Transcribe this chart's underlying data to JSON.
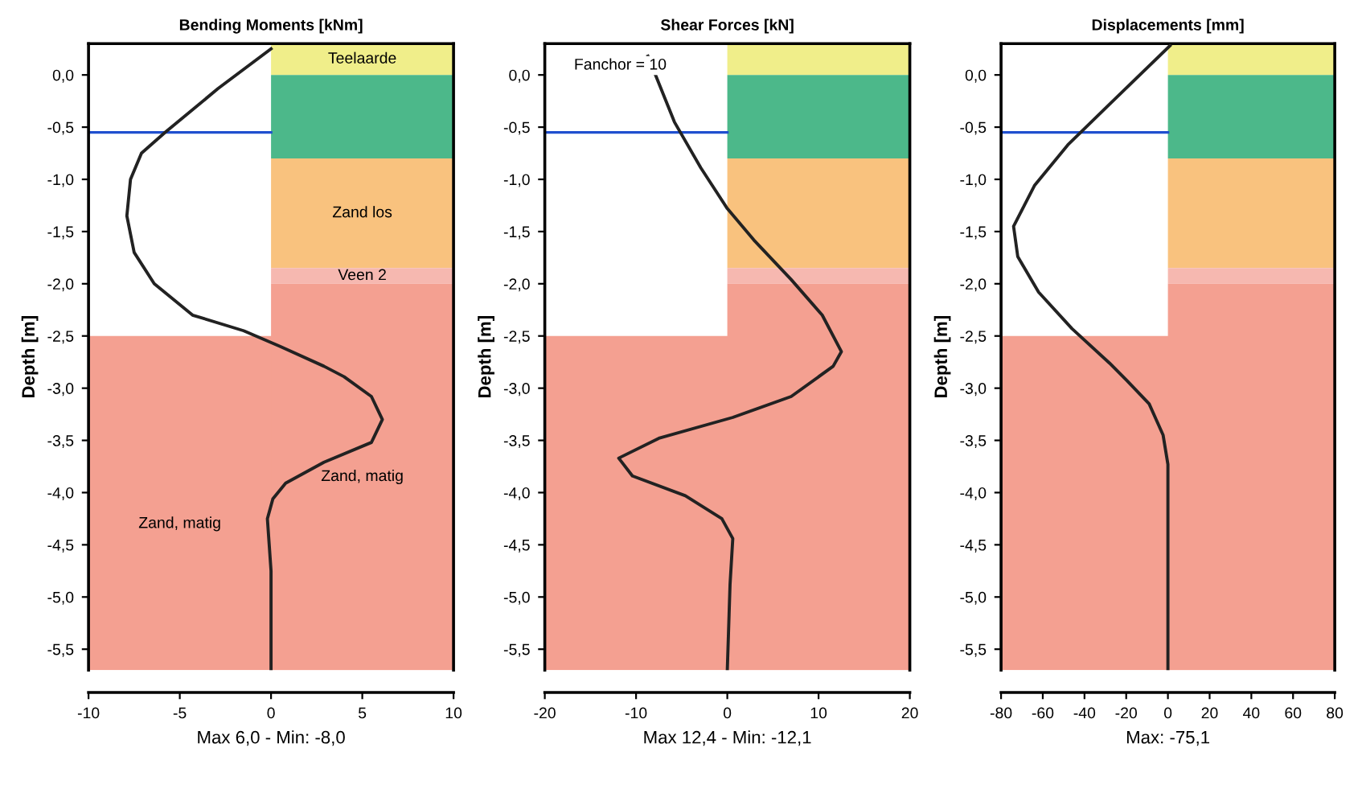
{
  "chart_data": [
    {
      "type": "line",
      "title": "Bending Moments [kNm]",
      "xlabel": "Max 6,0 - Min: -8,0",
      "ylabel": "Depth [m]",
      "series": [
        {
          "color": "#222222",
          "x": [
            0,
            -2.9,
            -5.8,
            -7.1,
            -7.7,
            -7.9,
            -7.5,
            -6.4,
            -4.3,
            -1.5,
            0.5,
            2.9,
            4.0,
            5.5,
            6.1,
            5.5,
            2.9,
            0.8,
            0.1,
            -0.2,
            -0.1,
            0,
            0
          ],
          "values": [
            0.25,
            -0.13,
            -0.55,
            -0.75,
            -1.0,
            -1.35,
            -1.7,
            -2.0,
            -2.3,
            -2.45,
            -2.6,
            -2.79,
            -2.89,
            -3.08,
            -3.3,
            -3.52,
            -3.71,
            -3.91,
            -4.06,
            -4.25,
            -4.5,
            -4.75,
            -5.7
          ]
        }
      ],
      "xlim": [
        -10,
        10
      ],
      "xticks": [
        -10,
        -5,
        0,
        5,
        10
      ],
      "ylim": [
        -5.7,
        0.3
      ],
      "yticks": [
        {
          "value": 0,
          "label": "0,0"
        },
        {
          "value": -0.5,
          "label": "-0,5"
        },
        {
          "value": -1,
          "label": "-1,0"
        },
        {
          "value": -1.5,
          "label": "-1,5"
        },
        {
          "value": -2,
          "label": "-2,0"
        },
        {
          "value": -2.5,
          "label": "-2,5"
        },
        {
          "value": -3,
          "label": "-3,0"
        },
        {
          "value": -3.5,
          "label": "-3,5"
        },
        {
          "value": -4,
          "label": "-4,0"
        },
        {
          "value": -4.5,
          "label": "-4,5"
        },
        {
          "value": -5,
          "label": "-5,0"
        },
        {
          "value": -5.5,
          "label": "-5,5"
        }
      ],
      "bands": [
        {
          "axis": "y",
          "from": -2.5,
          "to": -5.7,
          "label": "Zand, matig",
          "color": "#f4a091"
        },
        {
          "axis": "y",
          "from": 0.3,
          "to": 0,
          "label": "Teelaarde",
          "color": "#f0ee8a"
        },
        {
          "axis": "y",
          "from": 0,
          "to": -0.8,
          "color": "#4cb88a"
        },
        {
          "axis": "y",
          "from": -0.8,
          "to": -1.85,
          "label": "Zand los",
          "color": "#f9c27e"
        },
        {
          "axis": "y",
          "from": -1.85,
          "to": -2.0,
          "label": "Veen 2",
          "color": "#f6b8b0"
        },
        {
          "axis": "y",
          "from": -2.0,
          "to": -5.7,
          "label": "Zand, matig",
          "color": "#f4a091"
        }
      ],
      "ref_lines": [
        {
          "axis": "y",
          "value": -0.55,
          "color": "#1f4fcf"
        }
      ],
      "grid": false
    },
    {
      "type": "line",
      "title": "Shear Forces [kN]",
      "xlabel": "Max 12,4 - Min: -12,1",
      "ylabel": "Depth [m]",
      "annotations": [
        "Fanchor = 10"
      ],
      "series": [
        {
          "color": "#222222",
          "x": [
            -8.7,
            -5.8,
            -2.9,
            0,
            2.9,
            7.0,
            10.4,
            12.5,
            11.6,
            7.0,
            0.6,
            -7.5,
            -11.9,
            -10.4,
            -4.6,
            -0.6,
            0.6,
            0.3,
            0
          ],
          "values": [
            0.18,
            -0.45,
            -0.89,
            -1.28,
            -1.58,
            -1.96,
            -2.3,
            -2.65,
            -2.79,
            -3.08,
            -3.28,
            -3.48,
            -3.67,
            -3.84,
            -4.03,
            -4.25,
            -4.44,
            -4.88,
            -5.7
          ]
        }
      ],
      "xlim": [
        -20,
        20
      ],
      "xticks": [
        -20,
        -10,
        0,
        10,
        20
      ],
      "ylim": [
        -5.7,
        0.3
      ],
      "yticks": [
        {
          "value": 0,
          "label": "0,0"
        },
        {
          "value": -0.5,
          "label": "-0,5"
        },
        {
          "value": -1,
          "label": "-1,0"
        },
        {
          "value": -1.5,
          "label": "-1,5"
        },
        {
          "value": -2,
          "label": "-2,0"
        },
        {
          "value": -2.5,
          "label": "-2,5"
        },
        {
          "value": -3,
          "label": "-3,0"
        },
        {
          "value": -3.5,
          "label": "-3,5"
        },
        {
          "value": -4,
          "label": "-4,0"
        },
        {
          "value": -4.5,
          "label": "-4,5"
        },
        {
          "value": -5,
          "label": "-5,0"
        },
        {
          "value": -5.5,
          "label": "-5,5"
        }
      ],
      "bands": [
        {
          "axis": "y",
          "from": -2.5,
          "to": -5.7,
          "color": "#f4a091"
        },
        {
          "axis": "y",
          "from": 0.3,
          "to": 0,
          "color": "#f0ee8a"
        },
        {
          "axis": "y",
          "from": 0,
          "to": -0.8,
          "color": "#4cb88a"
        },
        {
          "axis": "y",
          "from": -0.8,
          "to": -1.85,
          "color": "#f9c27e"
        },
        {
          "axis": "y",
          "from": -1.85,
          "to": -2.0,
          "color": "#f6b8b0"
        },
        {
          "axis": "y",
          "from": -2.0,
          "to": -5.7,
          "color": "#f4a091"
        }
      ],
      "ref_lines": [
        {
          "axis": "y",
          "value": -0.55,
          "color": "#1f4fcf"
        }
      ],
      "grid": false
    },
    {
      "type": "line",
      "title": "Displacements [mm]",
      "xlabel": "Max: -75,1",
      "ylabel": "Depth [m]",
      "series": [
        {
          "color": "#222222",
          "x": [
            1,
            -28,
            -48,
            -64,
            -74,
            -72,
            -62,
            -46,
            -28,
            -19.5,
            -9,
            -2.3,
            0,
            0
          ],
          "values": [
            0.28,
            -0.28,
            -0.67,
            -1.06,
            -1.45,
            -1.74,
            -2.08,
            -2.43,
            -2.76,
            -2.93,
            -3.15,
            -3.45,
            -3.73,
            -5.7
          ]
        }
      ],
      "xlim": [
        -80,
        80
      ],
      "xticks": [
        -80,
        -60,
        -40,
        -20,
        0,
        20,
        40,
        60,
        80
      ],
      "ylim": [
        -5.7,
        0.3
      ],
      "yticks": [
        {
          "value": 0,
          "label": "0,0"
        },
        {
          "value": -0.5,
          "label": "-0,5"
        },
        {
          "value": -1,
          "label": "-1,0"
        },
        {
          "value": -1.5,
          "label": "-1,5"
        },
        {
          "value": -2,
          "label": "-2,0"
        },
        {
          "value": -2.5,
          "label": "-2,5"
        },
        {
          "value": -3,
          "label": "-3,0"
        },
        {
          "value": -3.5,
          "label": "-3,5"
        },
        {
          "value": -4,
          "label": "-4,0"
        },
        {
          "value": -4.5,
          "label": "-4,5"
        },
        {
          "value": -5,
          "label": "-5,0"
        },
        {
          "value": -5.5,
          "label": "-5,5"
        }
      ],
      "bands": [
        {
          "axis": "y",
          "from": -2.5,
          "to": -5.7,
          "color": "#f4a091"
        },
        {
          "axis": "y",
          "from": 0.3,
          "to": 0,
          "color": "#f0ee8a"
        },
        {
          "axis": "y",
          "from": 0,
          "to": -0.8,
          "color": "#4cb88a"
        },
        {
          "axis": "y",
          "from": -0.8,
          "to": -1.85,
          "color": "#f9c27e"
        },
        {
          "axis": "y",
          "from": -1.85,
          "to": -2.0,
          "color": "#f6b8b0"
        },
        {
          "axis": "y",
          "from": -2.0,
          "to": -5.7,
          "color": "#f4a091"
        }
      ],
      "ref_lines": [
        {
          "axis": "y",
          "value": -0.55,
          "color": "#1f4fcf"
        }
      ],
      "grid": false
    }
  ]
}
